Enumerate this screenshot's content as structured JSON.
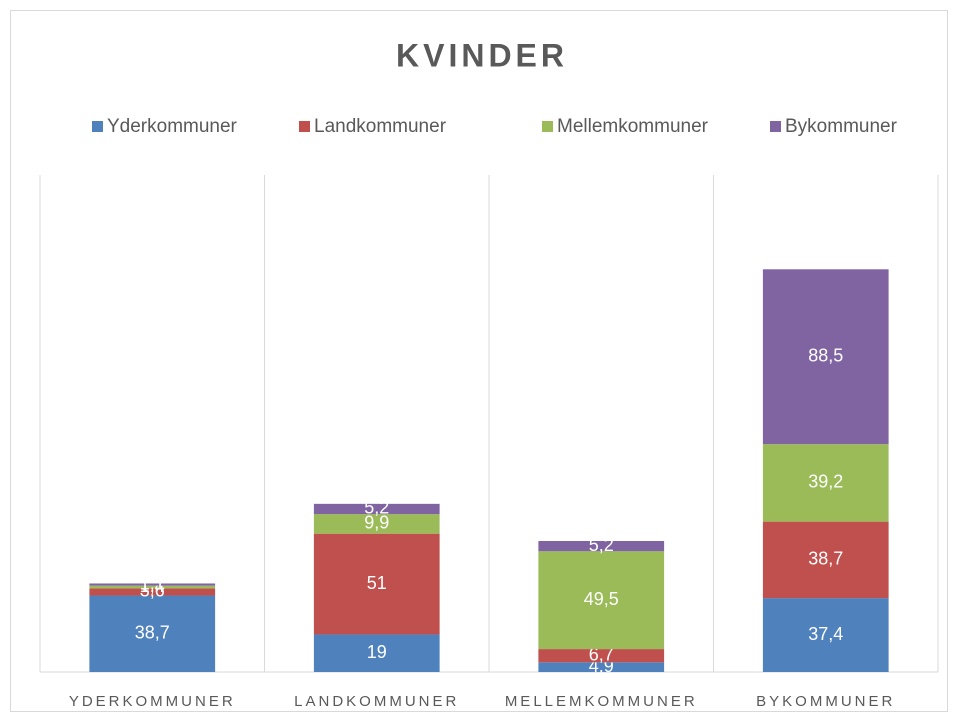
{
  "chart_data": {
    "type": "bar",
    "stacked": true,
    "title": "KVINDER",
    "categories": [
      "YDERKOMMUNER",
      "LANDKOMMUNER",
      "MELLEMKOMMUNER",
      "BYKOMMUNER"
    ],
    "series": [
      {
        "name": "Yderkommuner",
        "color": "#4f81bd",
        "values": [
          38.7,
          19,
          4.9,
          37.4
        ],
        "value_labels": [
          "38,7",
          "19",
          "4,9",
          "37,4"
        ]
      },
      {
        "name": "Landkommuner",
        "color": "#c0504d",
        "values": [
          3.6,
          51,
          6.7,
          38.7
        ],
        "value_labels": [
          "3,6",
          "51",
          "6,7",
          "38,7"
        ]
      },
      {
        "name": "Mellemkommuner",
        "color": "#9bbb59",
        "values": [
          1.4,
          9.9,
          49.5,
          39.2
        ],
        "value_labels": [
          "1,4",
          "9,9",
          "49,5",
          "39,2"
        ]
      },
      {
        "name": "Bykommuner",
        "color": "#8064a2",
        "values": [
          1.1,
          5.2,
          5.2,
          88.5
        ],
        "value_labels": [
          "1,1",
          "5,2",
          "5,2",
          "88,5"
        ]
      }
    ],
    "ylim": [
      0,
      250
    ],
    "legend": "top"
  }
}
